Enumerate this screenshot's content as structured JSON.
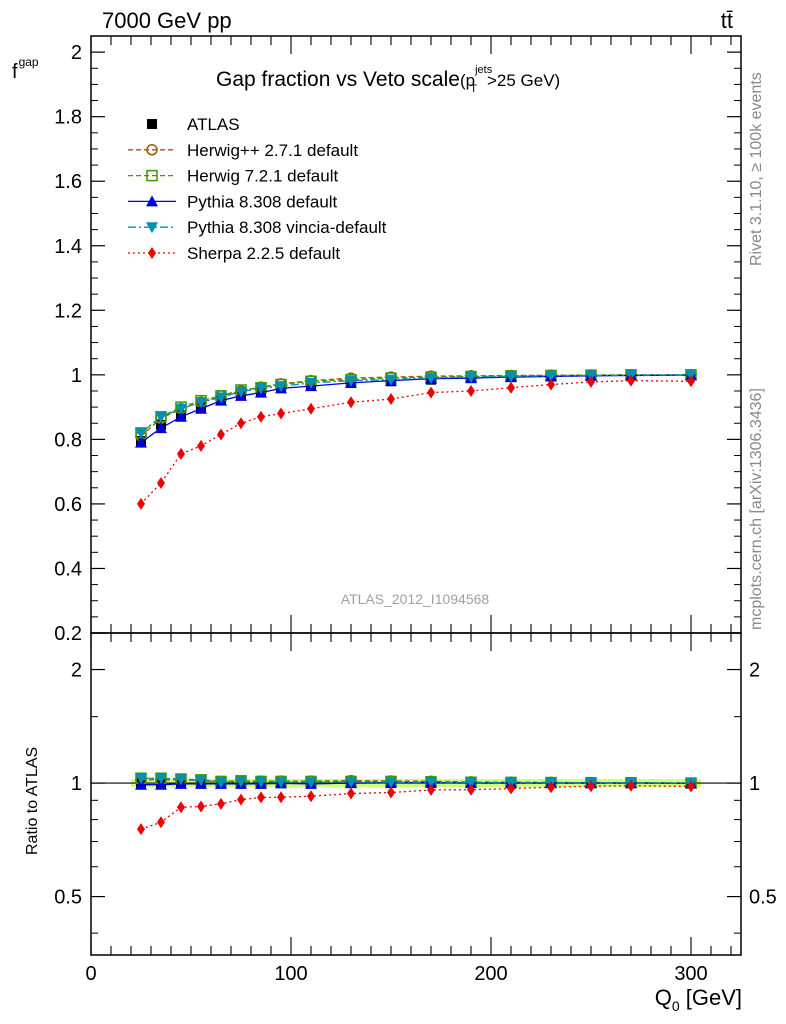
{
  "header": {
    "energy_label": "7000 GeV pp",
    "process_label": "tt̄"
  },
  "side_labels": {
    "rivet": "Rivet 3.1.10, ≥ 100k events",
    "mcplots": "mcplots.cern.ch [arXiv:1306.3436]"
  },
  "chart_data": [
    {
      "type": "line",
      "title_main": "Gap fraction vs Veto scale",
      "title_cut_open": "(p",
      "title_cut_sup": "jets",
      "title_cut_sub": "T",
      "title_cut_close": ">25 GeV)",
      "ylabel_main": "f",
      "ylabel_sub": "gap",
      "watermark": "ATLAS_2012_I1094568",
      "xlim": [
        0,
        325
      ],
      "ylim": [
        0.2,
        2.05
      ],
      "yticks": [
        "0.2",
        "0.4",
        "0.6",
        "0.8",
        "1",
        "1.2",
        "1.4",
        "1.6",
        "1.8",
        "2"
      ],
      "x": [
        25,
        35,
        45,
        55,
        65,
        75,
        85,
        95,
        110,
        130,
        150,
        170,
        190,
        210,
        230,
        250,
        270,
        300
      ],
      "series": [
        {
          "name": "ATLAS",
          "color": "#000000",
          "marker": "square-filled",
          "line": "none",
          "values": [
            0.795,
            0.845,
            0.875,
            0.9,
            0.925,
            0.94,
            0.95,
            0.96,
            0.97,
            0.975,
            0.98,
            0.985,
            0.99,
            0.993,
            0.995,
            0.997,
            0.998,
            1.0
          ]
        },
        {
          "name": "Herwig++ 2.7.1 default",
          "color": "#a05a00",
          "marker": "circle-open",
          "line": "dashed",
          "values": [
            0.81,
            0.865,
            0.895,
            0.915,
            0.935,
            0.95,
            0.962,
            0.972,
            0.982,
            0.99,
            0.993,
            0.996,
            0.997,
            0.998,
            0.999,
            0.999,
            1.0,
            1.0
          ]
        },
        {
          "name": "Herwig 7.2.1 default",
          "color": "#3a9a00",
          "marker": "square-open",
          "line": "dashed",
          "values": [
            0.82,
            0.87,
            0.9,
            0.92,
            0.935,
            0.953,
            0.96,
            0.97,
            0.98,
            0.985,
            0.99,
            0.993,
            0.995,
            0.997,
            0.998,
            0.999,
            1.0,
            1.0
          ]
        },
        {
          "name": "Pythia 8.308 default",
          "color": "#0000dd",
          "marker": "triangle-up",
          "line": "solid",
          "values": [
            0.79,
            0.835,
            0.87,
            0.895,
            0.92,
            0.935,
            0.945,
            0.958,
            0.965,
            0.975,
            0.982,
            0.988,
            0.99,
            0.993,
            0.995,
            0.997,
            0.998,
            0.999
          ]
        },
        {
          "name": "Pythia 8.308 vincia-default",
          "color": "#0090b0",
          "marker": "triangle-down",
          "line": "dashdot",
          "values": [
            0.82,
            0.87,
            0.895,
            0.915,
            0.93,
            0.948,
            0.958,
            0.965,
            0.975,
            0.982,
            0.985,
            0.99,
            0.993,
            0.995,
            0.997,
            0.998,
            0.999,
            1.0
          ]
        },
        {
          "name": "Sherpa 2.2.5 default",
          "color": "#ee0000",
          "marker": "diamond",
          "line": "dotted",
          "values": [
            0.6,
            0.665,
            0.755,
            0.78,
            0.815,
            0.85,
            0.87,
            0.88,
            0.895,
            0.915,
            0.925,
            0.945,
            0.95,
            0.96,
            0.97,
            0.978,
            0.982,
            0.98
          ]
        }
      ]
    },
    {
      "type": "line",
      "ylabel": "Ratio to ATLAS",
      "xlabel_main": "Q",
      "xlabel_sub": "0",
      "xlabel_unit": " [GeV]",
      "xlim": [
        0,
        325
      ],
      "ylim": [
        0.35,
        2.5
      ],
      "log_y": true,
      "yticks": [
        "0.5",
        "1",
        "2"
      ],
      "xticks": [
        "0",
        "100",
        "200",
        "300"
      ],
      "x": [
        25,
        35,
        45,
        55,
        65,
        75,
        85,
        95,
        110,
        130,
        150,
        170,
        190,
        210,
        230,
        250,
        270,
        300
      ],
      "series": [
        {
          "name": "ATLAS",
          "color": "#000000",
          "marker": "square-filled",
          "line": "none",
          "values": [
            1,
            1,
            1,
            1,
            1,
            1,
            1,
            1,
            1,
            1,
            1,
            1,
            1,
            1,
            1,
            1,
            1,
            1
          ]
        },
        {
          "name": "Herwig++ 2.7.1 default",
          "color": "#a05a00",
          "marker": "circle-open",
          "line": "dashed",
          "values": [
            1.02,
            1.02,
            1.02,
            1.015,
            1.01,
            1.01,
            1.012,
            1.012,
            1.012,
            1.015,
            1.013,
            1.011,
            1.007,
            1.005,
            1.004,
            1.002,
            1.002,
            1.0
          ]
        },
        {
          "name": "Herwig 7.2.1 default",
          "color": "#3a9a00",
          "marker": "square-open",
          "line": "dashed",
          "values": [
            1.03,
            1.03,
            1.025,
            1.02,
            1.01,
            1.014,
            1.01,
            1.01,
            1.01,
            1.01,
            1.01,
            1.008,
            1.005,
            1.004,
            1.003,
            1.002,
            1.002,
            1.0
          ]
        },
        {
          "name": "Pythia 8.308 default",
          "color": "#0000dd",
          "marker": "triangle-up",
          "line": "solid",
          "values": [
            0.99,
            0.99,
            0.995,
            0.995,
            0.995,
            0.995,
            0.995,
            0.998,
            0.995,
            1.0,
            1.002,
            1.003,
            1.0,
            1.0,
            1.0,
            1.0,
            1.0,
            0.999
          ]
        },
        {
          "name": "Pythia 8.308 vincia-default",
          "color": "#0090b0",
          "marker": "triangle-down",
          "line": "dashdot",
          "values": [
            1.03,
            1.03,
            1.023,
            1.017,
            1.005,
            1.009,
            1.008,
            1.005,
            1.005,
            1.007,
            1.005,
            1.005,
            1.003,
            1.002,
            1.002,
            1.001,
            1.001,
            1.0
          ]
        },
        {
          "name": "Sherpa 2.2.5 default",
          "color": "#ee0000",
          "marker": "diamond",
          "line": "dotted",
          "values": [
            0.755,
            0.787,
            0.863,
            0.867,
            0.881,
            0.904,
            0.916,
            0.917,
            0.923,
            0.938,
            0.944,
            0.959,
            0.96,
            0.967,
            0.975,
            0.981,
            0.984,
            0.98
          ]
        }
      ]
    }
  ]
}
